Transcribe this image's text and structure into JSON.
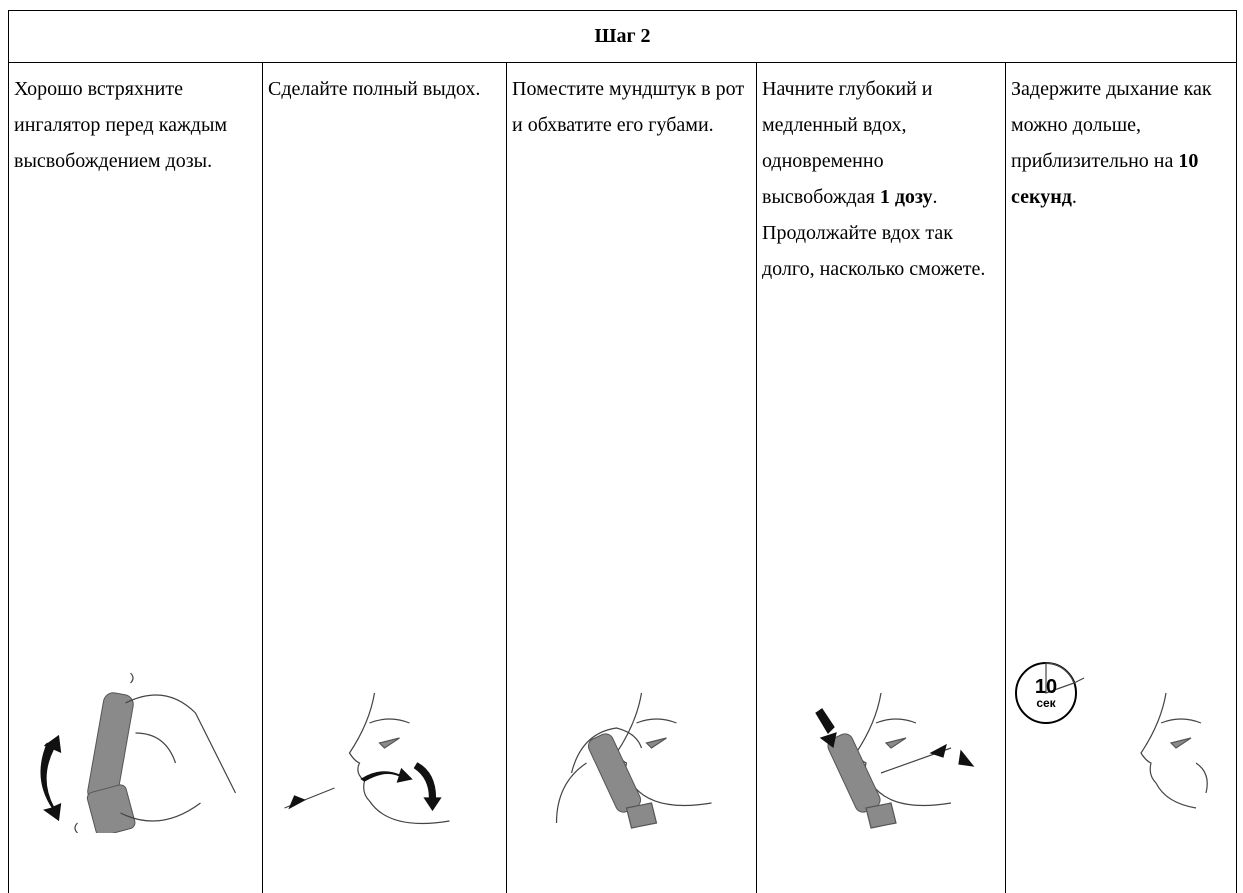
{
  "table": {
    "header": "Шаг 2",
    "cells": [
      {
        "paragraphs": [
          [
            {
              "text": "Хорошо встряхните ингалятор перед каждым высвобождением дозы.",
              "bold": false
            }
          ]
        ]
      },
      {
        "paragraphs": [
          [
            {
              "text": "Сделайте полный выдох.",
              "bold": false
            }
          ]
        ]
      },
      {
        "paragraphs": [
          [
            {
              "text": "Поместите мундштук в рот и обхватите его губами.",
              "bold": false
            }
          ]
        ]
      },
      {
        "paragraphs": [
          [
            {
              "text": "Начните глубокий и медленный вдох, одновременно высвобождая ",
              "bold": false
            },
            {
              "text": "1 дозу",
              "bold": true
            },
            {
              "text": ".",
              "bold": false
            }
          ],
          [
            {
              "text": "Продолжайте вдох так долго, насколько сможете.",
              "bold": false
            }
          ]
        ]
      },
      {
        "paragraphs": [
          [
            {
              "text": "Задержите дыхание как можно дольше, приблизительно на ",
              "bold": false
            },
            {
              "text": "10 секунд",
              "bold": true
            },
            {
              "text": ".",
              "bold": false
            }
          ]
        ],
        "timer": {
          "number": "10",
          "unit": "сек"
        }
      }
    ]
  }
}
